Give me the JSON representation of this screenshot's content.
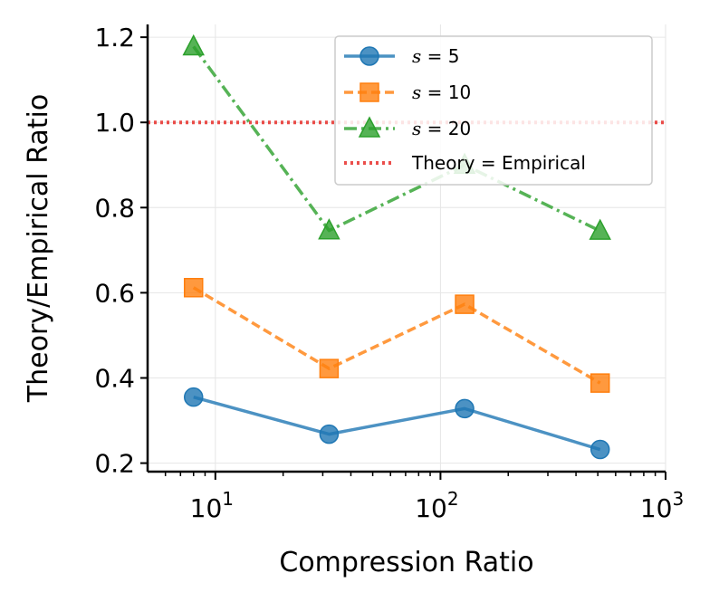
{
  "chart_data": {
    "type": "line",
    "xscale": "log",
    "xlim": [
      5,
      1000
    ],
    "ylim": [
      0.18,
      1.23
    ],
    "xlabel": "Compression Ratio",
    "ylabel": "Theory/Empirical Ratio",
    "grid": true,
    "legend_position": "upper-right",
    "x_ticks": [
      {
        "value": 10,
        "base": "10",
        "exp": "1"
      },
      {
        "value": 100,
        "base": "10",
        "exp": "2"
      },
      {
        "value": 1000,
        "base": "10",
        "exp": "3"
      }
    ],
    "y_ticks": [
      {
        "value": 0.2,
        "label": "0.2"
      },
      {
        "value": 0.4,
        "label": "0.4"
      },
      {
        "value": 0.6,
        "label": "0.6"
      },
      {
        "value": 0.8,
        "label": "0.8"
      },
      {
        "value": 1.0,
        "label": "1.0"
      },
      {
        "value": 1.2,
        "label": "1.2"
      }
    ],
    "x": [
      8,
      32,
      128,
      512
    ],
    "series": [
      {
        "name_var": "s",
        "name_eq": " = ",
        "name_val": "5",
        "values": [
          0.355,
          0.268,
          0.328,
          0.232
        ],
        "color": "#1f77b4",
        "marker": "circle",
        "dash": ""
      },
      {
        "name_var": "s",
        "name_eq": " = ",
        "name_val": "10",
        "values": [
          0.612,
          0.422,
          0.573,
          0.388
        ],
        "color": "#ff7f0e",
        "marker": "square",
        "dash": "10,5"
      },
      {
        "name_var": "s",
        "name_eq": " = ",
        "name_val": "20",
        "values": [
          1.178,
          0.746,
          0.9,
          0.745
        ],
        "color": "#2ca02c",
        "marker": "triangle",
        "dash": "14,5,3,5"
      }
    ],
    "reference_line": {
      "label": "Theory = Empirical",
      "y": 1.0,
      "color": "#e8302c",
      "dash": "3,4"
    }
  }
}
